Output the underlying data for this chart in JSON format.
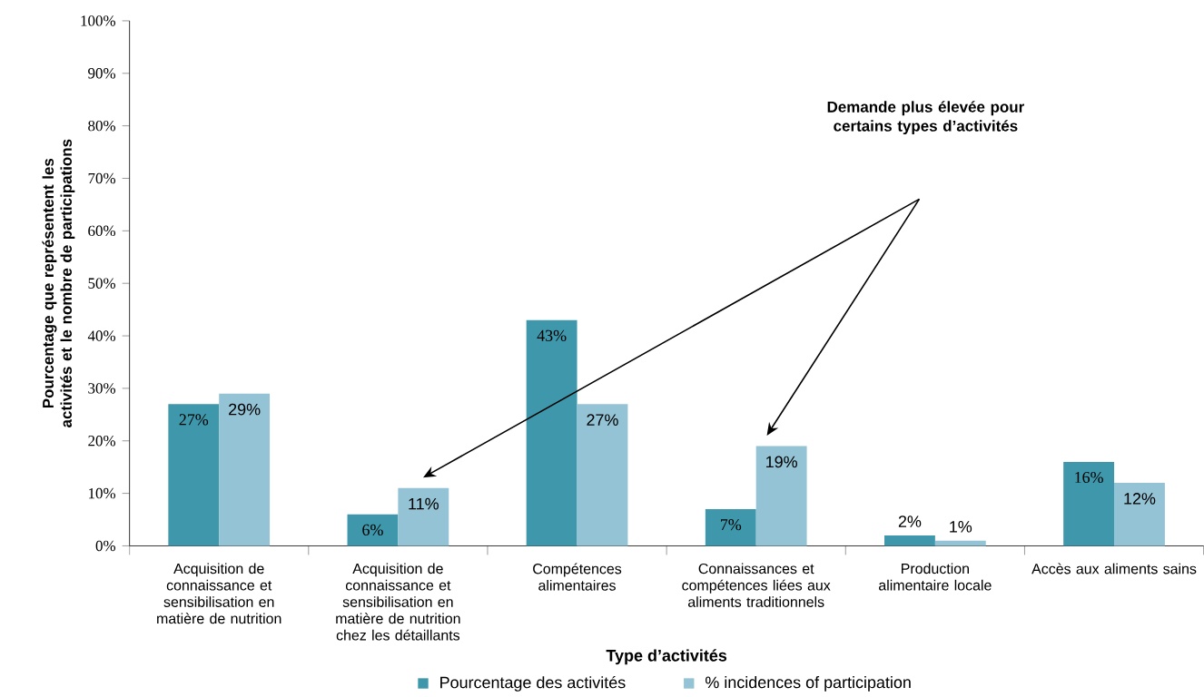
{
  "chart_data": {
    "type": "bar",
    "categories": [
      "Acquisition de connaissance et sensibilisation en matière de nutrition",
      "Acquisition de connaissance et sensibilisation en matière de nutrition chez les détaillants",
      "Compétences alimentaires",
      "Connaissances et compétences liées aux aliments traditionnels",
      "Production alimentaire locale",
      "Accès aux aliments sains"
    ],
    "series": [
      {
        "name": "Pourcentage des activités",
        "color": "#3f97ab",
        "values": [
          27,
          6,
          43,
          7,
          2,
          16
        ],
        "value_labels": [
          "27%",
          "6%",
          "43%",
          "7%",
          "2%",
          "16%"
        ]
      },
      {
        "name": "% incidences of participation",
        "color": "#93c3d4",
        "values": [
          29,
          11,
          27,
          19,
          1,
          12
        ],
        "value_labels": [
          "29%",
          "11%",
          "27%",
          "19%",
          "1%",
          "12%"
        ]
      }
    ],
    "xlabel": "Type d’activités",
    "ylabel": "Pourcentage que représentent les activités et le nombre de participations",
    "ylim": [
      0,
      100
    ],
    "yticks": [
      {
        "value": 0,
        "label": "0%"
      },
      {
        "value": 10,
        "label": "10%"
      },
      {
        "value": 20,
        "label": "20%"
      },
      {
        "value": 30,
        "label": "30%"
      },
      {
        "value": 40,
        "label": "40%"
      },
      {
        "value": 50,
        "label": "50%"
      },
      {
        "value": 60,
        "label": "60%"
      },
      {
        "value": 70,
        "label": "70%"
      },
      {
        "value": 80,
        "label": "80%"
      },
      {
        "value": 90,
        "label": "90%"
      },
      {
        "value": 100,
        "label": "100%"
      }
    ],
    "annotations": [
      "**Demande plus élevée pour certains types d’activités**"
    ],
    "grid": false,
    "legend": "bottom"
  }
}
